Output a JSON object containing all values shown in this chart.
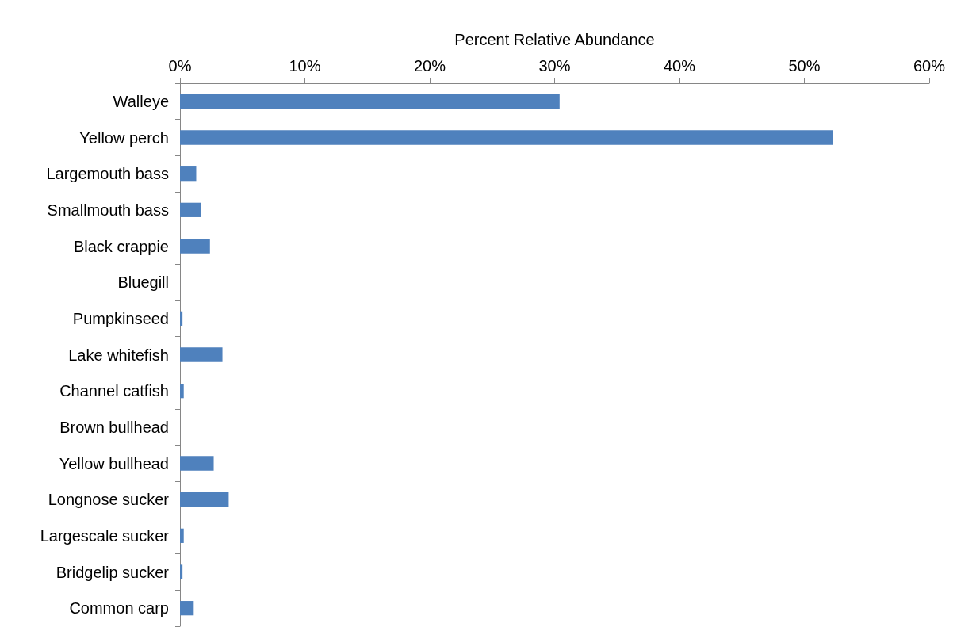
{
  "chart_data": {
    "type": "bar",
    "orientation": "horizontal",
    "xlabel": "Percent Relative Abundance",
    "categories": [
      "Walleye",
      "Yellow perch",
      "Largemouth bass",
      "Smallmouth bass",
      "Black crappie",
      "Bluegill",
      "Pumpkinseed",
      "Lake whitefish",
      "Channel catfish",
      "Brown bullhead",
      "Yellow bullhead",
      "Longnose sucker",
      "Largescale sucker",
      "Bridgelip sucker",
      "Common carp"
    ],
    "values": [
      30.4,
      52.3,
      1.3,
      1.7,
      2.4,
      0,
      0.2,
      3.4,
      0.3,
      0,
      2.7,
      3.9,
      0.3,
      0.2,
      1.1
    ],
    "color": "#4f81bd",
    "xlim": [
      0,
      60
    ],
    "xticks": [
      {
        "value": 0,
        "label": "0%"
      },
      {
        "value": 10,
        "label": "10%"
      },
      {
        "value": 20,
        "label": "20%"
      },
      {
        "value": 30,
        "label": "30%"
      },
      {
        "value": 40,
        "label": "40%"
      },
      {
        "value": 50,
        "label": "50%"
      },
      {
        "value": 60,
        "label": "60%"
      }
    ],
    "grid": false
  }
}
